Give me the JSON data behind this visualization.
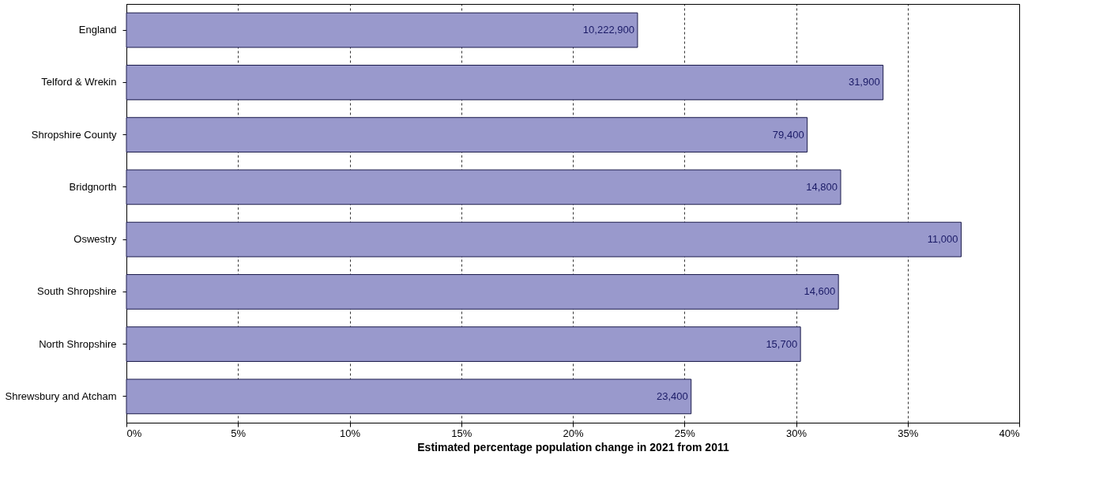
{
  "chart_data": {
    "type": "bar",
    "orientation": "horizontal",
    "xlabel": "Estimated percentage population change in 2021 from 2011",
    "categories": [
      "England",
      "Telford & Wrekin",
      "Shropshire County",
      "Bridgnorth",
      "Oswestry",
      "South Shropshire",
      "North Shropshire",
      "Shrewsbury and Atcham"
    ],
    "values": [
      22.9,
      33.9,
      30.5,
      32.0,
      37.4,
      31.9,
      30.2,
      25.3
    ],
    "annotations": [
      {
        "text": "10,222,900",
        "x": 22.9,
        "y": "England"
      },
      {
        "text": "31,900",
        "x": 33.9,
        "y": "Telford & Wrekin"
      },
      {
        "text": "79,400",
        "x": 30.5,
        "y": "Shropshire County"
      },
      {
        "text": "14,800",
        "x": 32.0,
        "y": "Bridgnorth"
      },
      {
        "text": "11,000",
        "x": 37.4,
        "y": "Oswestry"
      },
      {
        "text": "14,600",
        "x": 31.9,
        "y": "South Shropshire"
      },
      {
        "text": "15,700",
        "x": 30.2,
        "y": "North Shropshire"
      },
      {
        "text": "23,400",
        "x": 25.3,
        "y": "Shrewsbury and Atcham"
      }
    ],
    "color": "#9999cc",
    "xlim": [
      0,
      40
    ],
    "xticks": [
      {
        "value": 0,
        "label": "0%"
      },
      {
        "value": 5,
        "label": "5%"
      },
      {
        "value": 10,
        "label": "10%"
      },
      {
        "value": 15,
        "label": "15%"
      },
      {
        "value": 20,
        "label": "20%"
      },
      {
        "value": 25,
        "label": "25%"
      },
      {
        "value": 30,
        "label": "30%"
      },
      {
        "value": 35,
        "label": "35%"
      },
      {
        "value": 40,
        "label": "40%"
      }
    ],
    "grid": "x"
  }
}
